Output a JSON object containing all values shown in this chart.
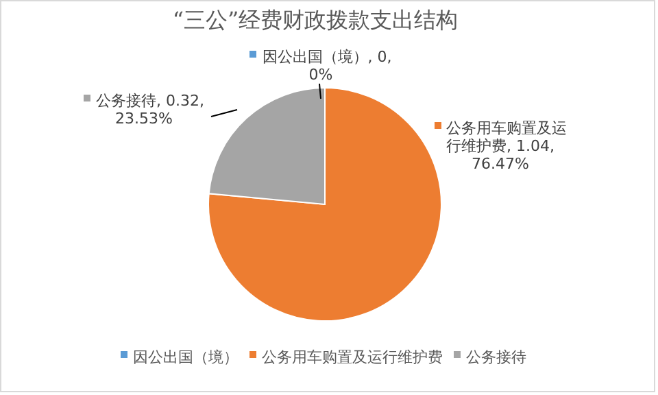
{
  "chart_data": {
    "type": "pie",
    "title": "“三公”经费财政拨款支出结构",
    "categories": [
      "因公出国（境）",
      "公务用车购置及运行维护费",
      "公务接待"
    ],
    "values": [
      0,
      1.04,
      0.32
    ],
    "colors": [
      "#5b9bd5",
      "#ed7d31",
      "#a5a5a5"
    ],
    "value_labels": [
      "因公出国（境）, 0, 0%",
      "公务用车购置及运行维护费, 1.04, 76.47%",
      "公务接待, 0.32, 23.53%"
    ],
    "legend": "bottom"
  }
}
